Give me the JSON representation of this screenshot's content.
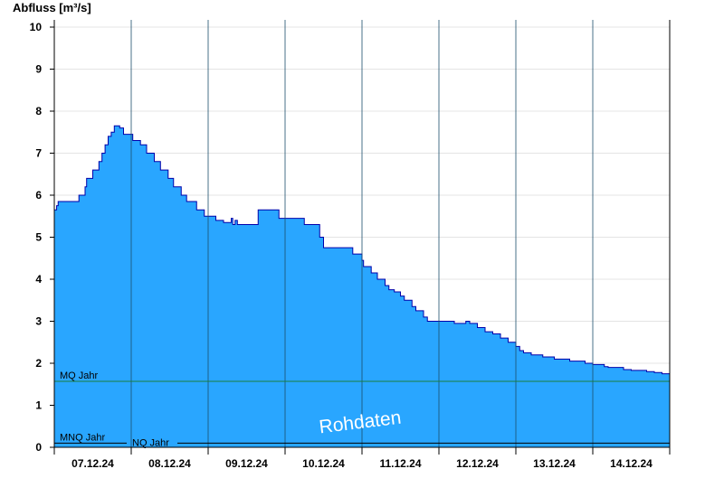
{
  "chart_data": {
    "type": "area",
    "title": "",
    "ylabel": "Abfluss [m³/s]",
    "xlabel": "",
    "ylim": [
      0,
      10
    ],
    "yticks": [
      0,
      1,
      2,
      3,
      4,
      5,
      6,
      7,
      8,
      9,
      10
    ],
    "xlim": [
      0,
      8
    ],
    "xtick_labels": [
      "07.12.24",
      "08.12.24",
      "09.12.24",
      "10.12.24",
      "11.12.24",
      "12.12.24",
      "13.12.24",
      "14.12.24"
    ],
    "grid": "horizontal",
    "fill_color": "#29a6ff",
    "line_color": "#0000aa",
    "reference_lines": [
      {
        "label": "MQ Jahr",
        "value": 1.57,
        "color": "#1a7f3c"
      },
      {
        "label": "MNQ Jahr",
        "value": 0.1,
        "color": "#000000"
      },
      {
        "label": "NQ Jahr",
        "value": 0.1,
        "color": "#000000"
      }
    ],
    "watermark": "Rohdaten",
    "series": [
      {
        "x": [
          0,
          0.03,
          0.05,
          0.3,
          0.32,
          0.4,
          0.42,
          0.5,
          0.58,
          0.62,
          0.66,
          0.7,
          0.74,
          0.78,
          0.82,
          0.85,
          0.9,
          1.0,
          1.02,
          1.12,
          1.2,
          1.3,
          1.38,
          1.48,
          1.55,
          1.65,
          1.72,
          1.85,
          1.95,
          2.1,
          2.2,
          2.3,
          2.32,
          2.35,
          2.38,
          2.5,
          2.62,
          2.65,
          2.88,
          2.92,
          3.15,
          3.25,
          3.42,
          3.45,
          3.5,
          3.7,
          3.72,
          3.88,
          4.0,
          4.02,
          4.12,
          4.2,
          4.3,
          4.35,
          4.42,
          4.5,
          4.55,
          4.65,
          4.7,
          4.8,
          4.85,
          5.0,
          5.2,
          5.3,
          5.35,
          5.4,
          5.5,
          5.6,
          5.7,
          5.8,
          5.9,
          6.0,
          6.05,
          6.1,
          6.2,
          6.35,
          6.5,
          6.7,
          6.9,
          7.0,
          7.15,
          7.2,
          7.4,
          7.5,
          7.7,
          7.8,
          7.9,
          8.0
        ],
        "y": [
          5.65,
          5.75,
          5.85,
          5.85,
          6.0,
          6.2,
          6.4,
          6.6,
          6.8,
          7.0,
          7.2,
          7.4,
          7.5,
          7.65,
          7.65,
          7.6,
          7.45,
          7.45,
          7.3,
          7.2,
          7.0,
          6.8,
          6.6,
          6.4,
          6.2,
          6.0,
          5.85,
          5.65,
          5.5,
          5.4,
          5.35,
          5.45,
          5.3,
          5.4,
          5.3,
          5.3,
          5.3,
          5.65,
          5.65,
          5.45,
          5.45,
          5.3,
          5.3,
          5.0,
          4.75,
          4.75,
          4.75,
          4.6,
          4.45,
          4.3,
          4.15,
          4.0,
          3.85,
          3.75,
          3.7,
          3.6,
          3.5,
          3.35,
          3.25,
          3.1,
          3.0,
          3.0,
          2.95,
          2.95,
          3.0,
          2.95,
          2.85,
          2.75,
          2.7,
          2.6,
          2.5,
          2.4,
          2.3,
          2.25,
          2.2,
          2.15,
          2.1,
          2.05,
          2.0,
          1.97,
          1.92,
          1.9,
          1.85,
          1.83,
          1.8,
          1.78,
          1.75,
          1.72
        ]
      }
    ]
  }
}
